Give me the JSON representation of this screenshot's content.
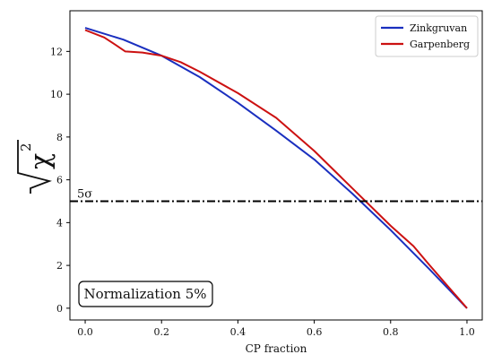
{
  "chart_data": {
    "type": "line",
    "xlabel": "CP fraction",
    "ylabel_symbol": "χ",
    "ylabel_exponent": "2",
    "xlim": [
      -0.04,
      1.04
    ],
    "ylim": [
      -0.55,
      13.9
    ],
    "xticks": [
      0.0,
      0.2,
      0.4,
      0.6,
      0.8,
      1.0
    ],
    "xtick_labels": [
      "0.0",
      "0.2",
      "0.4",
      "0.6",
      "0.8",
      "1.0"
    ],
    "yticks": [
      0,
      2,
      4,
      6,
      8,
      10,
      12
    ],
    "ytick_labels": [
      "0",
      "2",
      "4",
      "6",
      "8",
      "10",
      "12"
    ],
    "grid": false,
    "legend_position": "top-right",
    "series": [
      {
        "name": "Zinkgruvan",
        "color": "#1a2fbf",
        "x": [
          0.0,
          0.1,
          0.2,
          0.3,
          0.4,
          0.5,
          0.6,
          0.7,
          0.8,
          0.9,
          1.0
        ],
        "y": [
          13.1,
          12.55,
          11.8,
          10.8,
          9.6,
          8.3,
          6.95,
          5.35,
          3.65,
          1.85,
          0.0
        ]
      },
      {
        "name": "Garpenberg",
        "color": "#cc1111",
        "x": [
          0.0,
          0.05,
          0.08,
          0.105,
          0.15,
          0.2,
          0.25,
          0.3,
          0.4,
          0.5,
          0.6,
          0.7,
          0.8,
          0.86,
          0.9,
          1.0
        ],
        "y": [
          13.0,
          12.65,
          12.3,
          12.0,
          11.95,
          11.8,
          11.5,
          11.05,
          10.05,
          8.9,
          7.35,
          5.6,
          3.85,
          2.9,
          2.05,
          0.0
        ]
      }
    ],
    "hline": {
      "y": 5.0,
      "label": "5σ",
      "color": "#000000"
    },
    "annotation": "Normalization 5%"
  }
}
